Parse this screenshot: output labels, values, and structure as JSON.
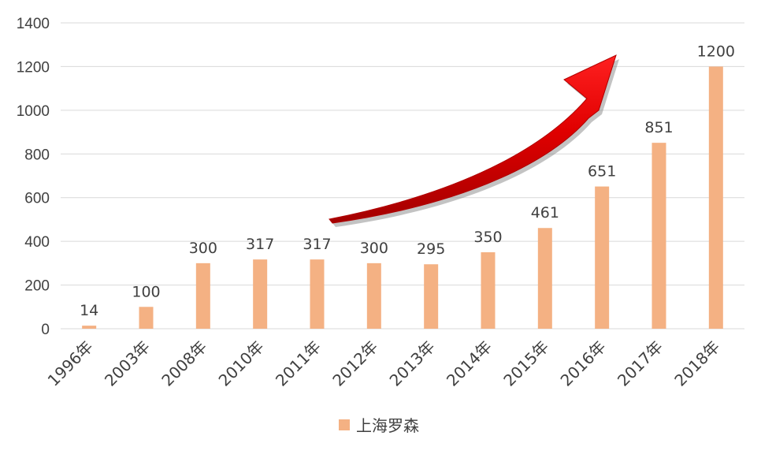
{
  "chart_data": {
    "type": "bar",
    "categories": [
      "1996年",
      "2003年",
      "2008年",
      "2010年",
      "2011年",
      "2012年",
      "2013年",
      "2014年",
      "2015年",
      "2016年",
      "2017年",
      "2018年"
    ],
    "series": [
      {
        "name": "上海罗森",
        "values": [
          14,
          100,
          300,
          317,
          317,
          300,
          295,
          350,
          461,
          651,
          851,
          1200
        ],
        "color": "#F4B183"
      }
    ],
    "data_labels": [
      "14",
      "100",
      "300",
      "317",
      "317",
      "300",
      "295",
      "350",
      "461",
      "651",
      "851",
      "1200"
    ],
    "y_ticks": [
      "0",
      "200",
      "400",
      "600",
      "800",
      "1000",
      "1200",
      "1400"
    ],
    "ylim": [
      0,
      1400
    ],
    "grid": true,
    "legend_position": "bottom",
    "annotation": "red upward-curving growth arrow",
    "colors": {
      "bar": "#F4B183",
      "gridline": "#D9D9D9",
      "arrow": "#FF0000",
      "arrow_dark": "#B00000",
      "text": "#404040"
    }
  }
}
